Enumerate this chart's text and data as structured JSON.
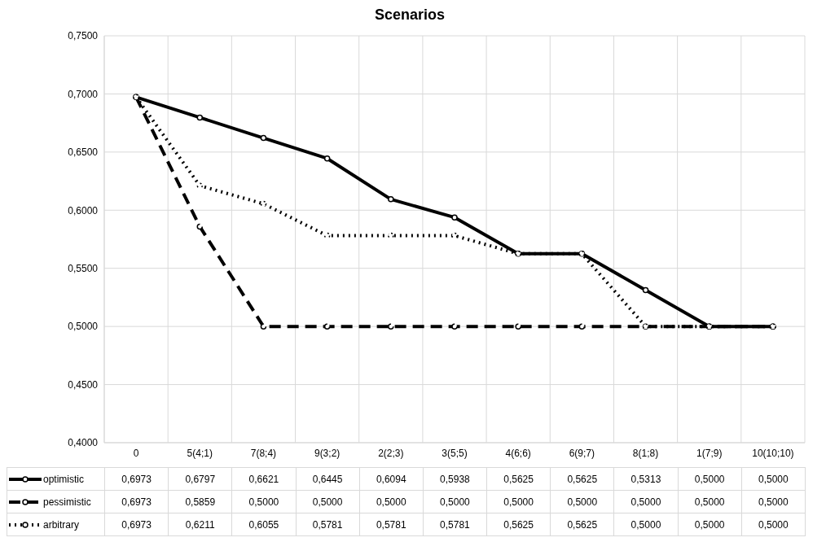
{
  "chart_data": {
    "type": "line",
    "title": "Scenarios",
    "categories": [
      "0",
      "5(4;1)",
      "7(8;4)",
      "9(3;2)",
      "2(2;3)",
      "3(5;5)",
      "4(6;6)",
      "6(9;7)",
      "8(1;8)",
      "1(7;9)",
      "10(10;10)"
    ],
    "series": [
      {
        "name": "optimistic",
        "color": "#000000",
        "line_style": "solid",
        "marker": "circle",
        "values": [
          0.6973,
          0.6797,
          0.6621,
          0.6445,
          0.6094,
          0.5938,
          0.5625,
          0.5625,
          0.5313,
          0.5,
          0.5
        ],
        "value_labels": [
          "0,6973",
          "0,6797",
          "0,6621",
          "0,6445",
          "0,6094",
          "0,5938",
          "0,5625",
          "0,5625",
          "0,5313",
          "0,5000",
          "0,5000"
        ]
      },
      {
        "name": "pessimistic",
        "color": "#000000",
        "line_style": "dashed",
        "marker": "circle",
        "values": [
          0.6973,
          0.5859,
          0.5,
          0.5,
          0.5,
          0.5,
          0.5,
          0.5,
          0.5,
          0.5,
          0.5
        ],
        "value_labels": [
          "0,6973",
          "0,5859",
          "0,5000",
          "0,5000",
          "0,5000",
          "0,5000",
          "0,5000",
          "0,5000",
          "0,5000",
          "0,5000",
          "0,5000"
        ]
      },
      {
        "name": "arbitrary",
        "color": "#000000",
        "line_style": "dotted",
        "marker": "circle",
        "values": [
          0.6973,
          0.6211,
          0.6055,
          0.5781,
          0.5781,
          0.5781,
          0.5625,
          0.5625,
          0.5,
          0.5,
          0.5
        ],
        "value_labels": [
          "0,6973",
          "0,6211",
          "0,6055",
          "0,5781",
          "0,5781",
          "0,5781",
          "0,5625",
          "0,5625",
          "0,5000",
          "0,5000",
          "0,5000"
        ]
      }
    ],
    "ylim": [
      0.4,
      0.75
    ],
    "yticks": [
      {
        "value": 0.4,
        "label": "0,4000"
      },
      {
        "value": 0.45,
        "label": "0,4500"
      },
      {
        "value": 0.5,
        "label": "0,5000"
      },
      {
        "value": 0.55,
        "label": "0,5500"
      },
      {
        "value": 0.6,
        "label": "0,6000"
      },
      {
        "value": 0.65,
        "label": "0,6500"
      },
      {
        "value": 0.7,
        "label": "0,7000"
      },
      {
        "value": 0.75,
        "label": "0,7500"
      }
    ],
    "grid": true,
    "legend": "bottom"
  }
}
